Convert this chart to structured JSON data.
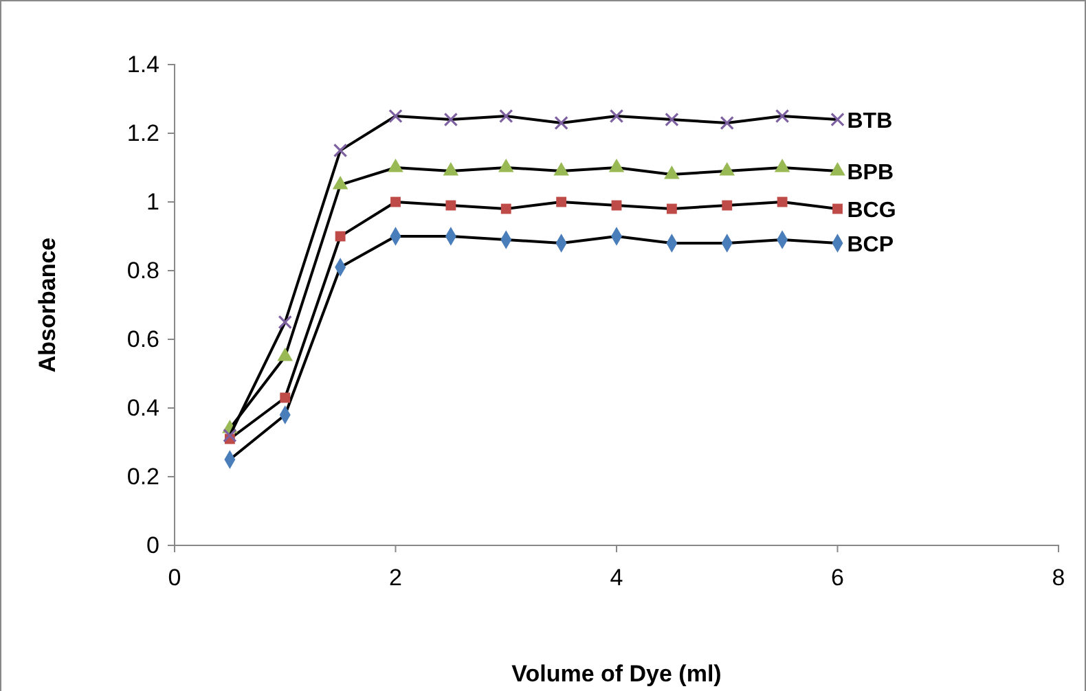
{
  "chart_data": {
    "type": "line",
    "xlabel": "Volume of Dye (ml)",
    "ylabel": "Absorbance",
    "x": [
      0.5,
      1,
      1.5,
      2,
      2.5,
      3,
      3.5,
      4,
      4.5,
      5,
      5.5,
      6
    ],
    "series": [
      {
        "name": "BTB",
        "color": "#7d60a0",
        "marker": "cross",
        "values": [
          0.32,
          0.65,
          1.15,
          1.25,
          1.24,
          1.25,
          1.23,
          1.25,
          1.24,
          1.23,
          1.25,
          1.24
        ]
      },
      {
        "name": "BPB",
        "color": "#98b954",
        "marker": "triangle",
        "values": [
          0.34,
          0.55,
          1.05,
          1.1,
          1.09,
          1.1,
          1.09,
          1.1,
          1.08,
          1.09,
          1.1,
          1.09
        ]
      },
      {
        "name": "BCG",
        "color": "#be4b48",
        "marker": "square",
        "values": [
          0.31,
          0.43,
          0.9,
          1.0,
          0.99,
          0.98,
          1.0,
          0.99,
          0.98,
          0.99,
          1.0,
          0.98
        ]
      },
      {
        "name": "BCP",
        "color": "#4a7ebb",
        "marker": "diamond",
        "values": [
          0.25,
          0.38,
          0.81,
          0.9,
          0.9,
          0.89,
          0.88,
          0.9,
          0.88,
          0.88,
          0.89,
          0.88
        ]
      }
    ],
    "xlim": [
      0,
      8
    ],
    "xticks": [
      0,
      2,
      4,
      6,
      8
    ],
    "ylim": [
      0,
      1.4
    ],
    "yticks": [
      0,
      0.2,
      0.4,
      0.6,
      0.8,
      1,
      1.2,
      1.4
    ],
    "grid": false,
    "line_style": "solid"
  }
}
